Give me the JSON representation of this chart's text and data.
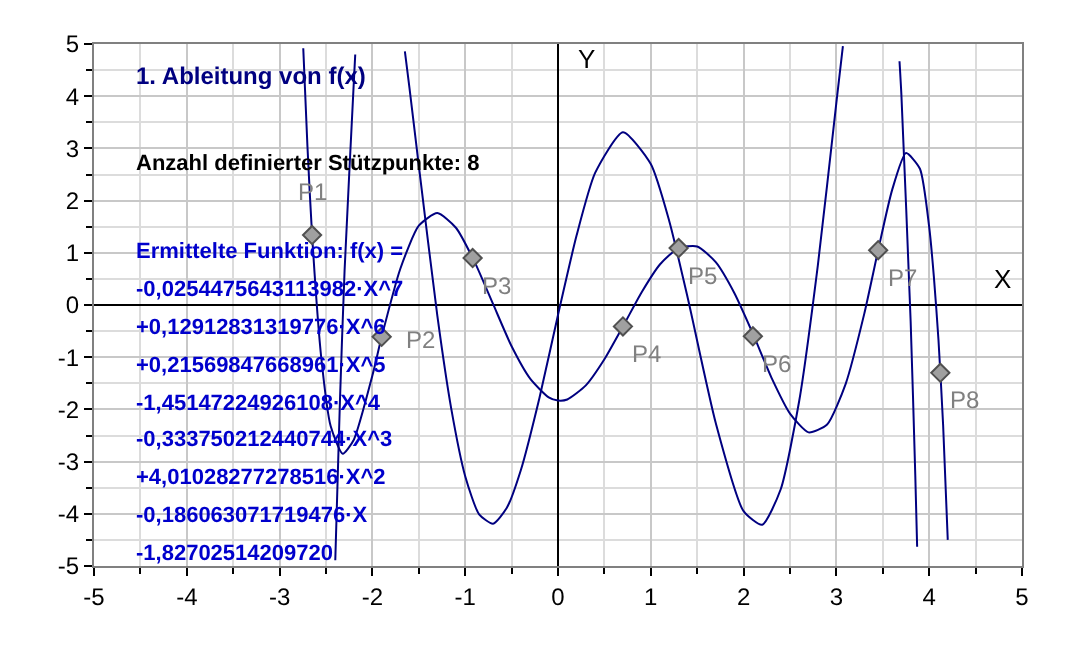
{
  "chart_data": {
    "type": "line",
    "title": "1. Ableitung von f(x)",
    "xlabel": "X",
    "ylabel": "Y",
    "annotations": [
      "Anzahl definierter Stützpunkte: 8",
      "Ermittelte Funktion: f(x) =",
      "-0,0254475643113982·X^7",
      "+0,12912831319776·X^6",
      "+0,21569847668961·X^5",
      "-1,45147224926108·X^4",
      "-0,333750212440744·X^3",
      "+4,01028277278516·X^2",
      "-0,186063071719476·X",
      "-1,82702514209720"
    ],
    "xlim": [
      -5,
      5
    ],
    "ylim": [
      -5,
      5
    ],
    "xticks": [
      -5,
      -4,
      -3,
      -2,
      -1,
      0,
      1,
      2,
      3,
      4,
      5
    ],
    "yticks": [
      -5,
      -4,
      -3,
      -2,
      -1,
      0,
      1,
      2,
      3,
      4,
      5
    ],
    "grid": true,
    "series": [
      {
        "color": "#000080",
        "x": [
          -2.745,
          -2.7,
          -2.65,
          -2.55,
          -2.45,
          -2.32,
          -2.2,
          -2.0,
          -1.9,
          -1.7,
          -1.5,
          -1.3,
          -1.1,
          -0.9,
          -0.7,
          -0.5,
          -0.3,
          -0.1,
          0.0,
          0.1,
          0.3,
          0.5,
          0.7,
          0.9,
          1.1,
          1.3,
          1.5,
          1.7,
          1.9,
          2.1,
          2.3,
          2.5,
          2.7,
          2.9,
          3.1,
          3.3,
          3.45,
          3.6,
          3.75,
          3.9,
          4.0,
          4.05,
          4.1,
          4.15,
          4.2
        ],
        "values": [
          4.92,
          3.04,
          1.34,
          -1.03,
          -2.32,
          -2.85,
          -2.58,
          -1.35,
          -0.61,
          0.69,
          1.52,
          1.76,
          1.48,
          0.83,
          0.02,
          -0.79,
          -1.41,
          -1.77,
          -1.83,
          -1.81,
          -1.54,
          -1.04,
          -0.41,
          0.24,
          0.78,
          1.09,
          1.12,
          0.82,
          0.23,
          -0.55,
          -1.39,
          -2.08,
          -2.44,
          -2.29,
          -1.51,
          -0.17,
          1.05,
          2.2,
          2.91,
          2.61,
          1.49,
          0.55,
          -0.67,
          -2.3,
          -4.5
        ]
      },
      {
        "color": "#000080",
        "x": [
          -2.4,
          -2.35,
          -2.3,
          -2.2,
          -2.185,
          -2.0,
          -1.65,
          -1.6,
          -1.5,
          -1.3,
          -1.15,
          -1.0,
          -0.85,
          -0.7,
          -0.55,
          -0.4,
          -0.2,
          0.0,
          0.2,
          0.4,
          0.7,
          1.0,
          1.2,
          1.4,
          1.7,
          2.0,
          2.2,
          2.4,
          2.6,
          2.8,
          3.0,
          3.07,
          3.4,
          3.68,
          3.7,
          3.8,
          3.85,
          3.87
        ],
        "values": [
          -4.89,
          -1.85,
          0.65,
          4.28,
          4.8,
          null,
          4.86,
          4.15,
          2.67,
          -0.21,
          -1.99,
          -3.28,
          -4.01,
          -4.19,
          -3.88,
          -3.16,
          -1.78,
          -0.19,
          1.33,
          2.53,
          3.31,
          2.7,
          1.6,
          0.12,
          -2.26,
          -3.95,
          -4.21,
          -3.53,
          -1.83,
          0.76,
          3.88,
          4.96,
          null,
          4.67,
          4.04,
          -0.31,
          -3.26,
          -4.63
        ]
      },
      {
        "type": "scatter",
        "color": "#a0a0a0",
        "marker": "diamond",
        "x": [
          -2.65,
          -1.9,
          -0.92,
          0.7,
          1.3,
          2.1,
          3.45,
          4.12
        ],
        "values": [
          1.34,
          -0.61,
          0.9,
          -0.41,
          1.09,
          -0.6,
          1.05,
          -1.3
        ],
        "value_labels": [
          "P1",
          "P2",
          "P3",
          "P4",
          "P5",
          "P6",
          "P7",
          "P8"
        ]
      }
    ]
  }
}
